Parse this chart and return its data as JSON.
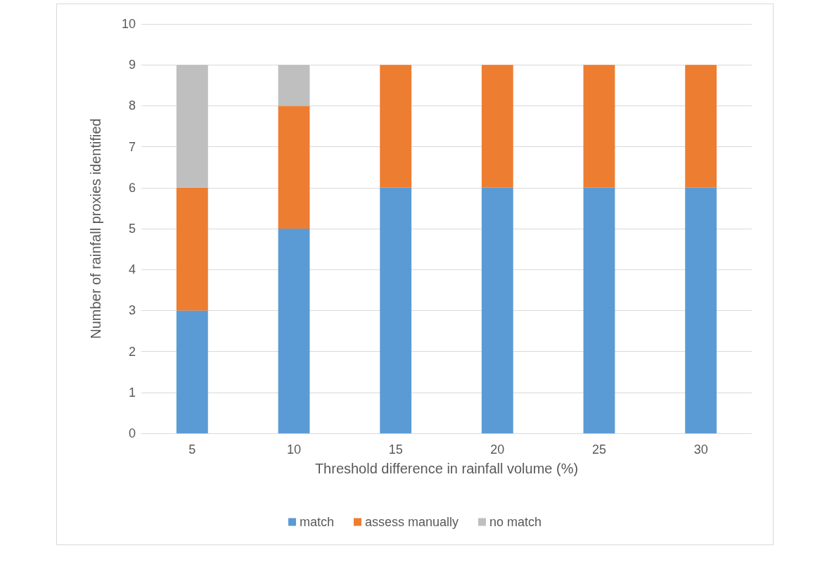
{
  "chart_data": {
    "type": "bar",
    "stacked": true,
    "xlabel": "Threshold difference in rainfall volume (%)",
    "ylabel": "Number of rainfall proxies identified",
    "categories": [
      "5",
      "10",
      "15",
      "20",
      "25",
      "30"
    ],
    "series": [
      {
        "name": "match",
        "color": "#5b9bd5",
        "values": [
          3,
          5,
          6,
          6,
          6,
          6
        ]
      },
      {
        "name": "assess manually",
        "color": "#ed7d31",
        "values": [
          3,
          3,
          3,
          3,
          3,
          3
        ]
      },
      {
        "name": "no match",
        "color": "#bfbfbf",
        "values": [
          3,
          1,
          0,
          0,
          0,
          0
        ]
      }
    ],
    "ylim": [
      0,
      10
    ],
    "yticks": [
      0,
      1,
      2,
      3,
      4,
      5,
      6,
      7,
      8,
      9,
      10
    ],
    "grid": "y",
    "legend": "bottom"
  }
}
